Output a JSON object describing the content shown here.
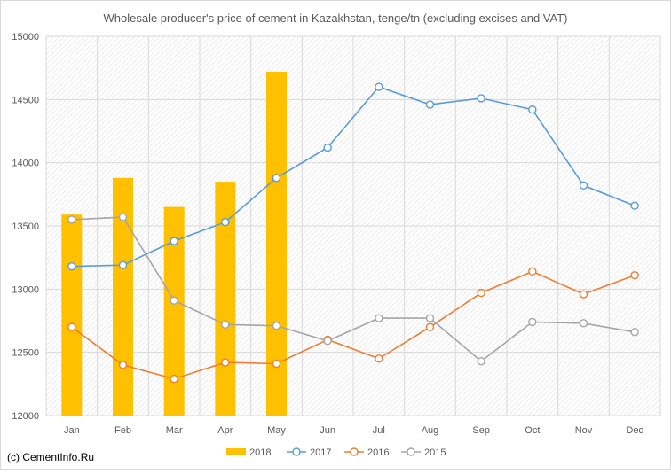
{
  "chart_data": {
    "type": "bar+line",
    "title": "Wholesale producer's price of cement in Kazakhstan, tenge/tn (excluding excises and VAT)",
    "categories": [
      "Jan",
      "Feb",
      "Mar",
      "Apr",
      "May",
      "Jun",
      "Jul",
      "Aug",
      "Sep",
      "Oct",
      "Nov",
      "Dec"
    ],
    "ylim": [
      12000,
      15000
    ],
    "yticks": [
      "12000",
      "12500",
      "13000",
      "13500",
      "14000",
      "14500",
      "15000"
    ],
    "grid": true,
    "legend_position": "bottom",
    "series": [
      {
        "name": "2018",
        "kind": "bar",
        "color": "#ffc000",
        "values": [
          13590,
          13880,
          13650,
          13850,
          14720,
          null,
          null,
          null,
          null,
          null,
          null,
          null
        ]
      },
      {
        "name": "2017",
        "kind": "line",
        "color": "#5b9bd5",
        "values": [
          13180,
          13190,
          13380,
          13530,
          13880,
          14120,
          14600,
          14460,
          14510,
          14420,
          13820,
          13660
        ]
      },
      {
        "name": "2016",
        "kind": "line",
        "color": "#ed7d31",
        "values": [
          12700,
          12400,
          12290,
          12420,
          12410,
          12600,
          12450,
          12700,
          12970,
          13140,
          12960,
          13110
        ]
      },
      {
        "name": "2015",
        "kind": "line",
        "color": "#a5a5a5",
        "values": [
          13550,
          13570,
          12910,
          12720,
          12710,
          12590,
          12770,
          12770,
          12430,
          12740,
          12730,
          12660
        ]
      }
    ]
  },
  "footer": {
    "copyright": "(c) CementInfo.Ru"
  }
}
